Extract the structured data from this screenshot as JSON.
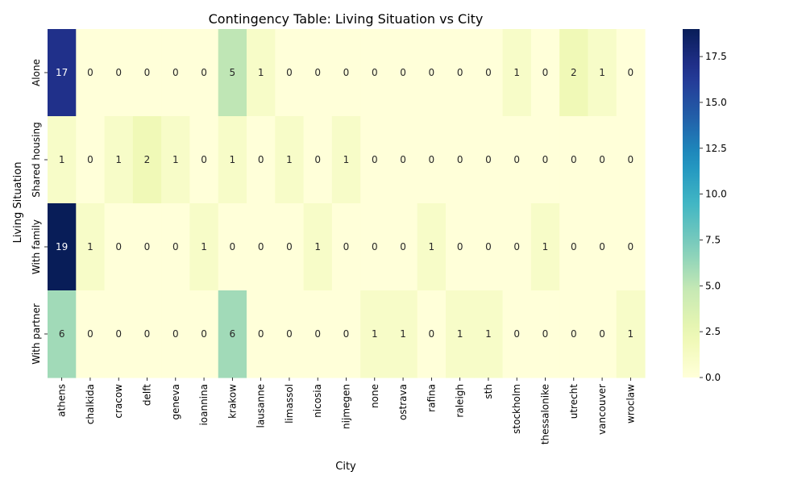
{
  "chart_data": {
    "type": "heatmap",
    "title": "Contingency Table: Living Situation vs City",
    "xlabel": "City",
    "ylabel": "Living Situation",
    "x": [
      "athens",
      "chalkida",
      "cracow",
      "delft",
      "geneva",
      "ioannina",
      "krakow",
      "lausanne",
      "limassol",
      "nicosia",
      "nijmegen",
      "none",
      "ostrava",
      "rafina",
      "raleigh",
      "sth",
      "stockholm",
      "thessalonike",
      "utrecht",
      "vancouver",
      "wroclaw"
    ],
    "y": [
      "Alone",
      "Shared housing",
      "With family",
      "With partner"
    ],
    "values": [
      [
        17,
        0,
        0,
        0,
        0,
        0,
        5,
        1,
        0,
        0,
        0,
        0,
        0,
        0,
        0,
        0,
        1,
        0,
        2,
        1,
        0
      ],
      [
        1,
        0,
        1,
        2,
        1,
        0,
        1,
        0,
        1,
        0,
        1,
        0,
        0,
        0,
        0,
        0,
        0,
        0,
        0,
        0,
        0
      ],
      [
        19,
        1,
        0,
        0,
        0,
        1,
        0,
        0,
        0,
        1,
        0,
        0,
        0,
        1,
        0,
        0,
        0,
        1,
        0,
        0,
        0
      ],
      [
        6,
        0,
        0,
        0,
        0,
        0,
        6,
        0,
        0,
        0,
        0,
        1,
        1,
        0,
        1,
        1,
        0,
        0,
        0,
        0,
        1
      ]
    ],
    "colormap": "YlGnBu",
    "color_range": [
      0,
      19
    ],
    "colorbar_ticks": [
      "0.0",
      "2.5",
      "5.0",
      "7.5",
      "10.0",
      "12.5",
      "15.0",
      "17.5"
    ],
    "colorbar_tick_values": [
      0,
      2.5,
      5,
      7.5,
      10,
      12.5,
      15,
      17.5
    ],
    "grid": false,
    "annotations": true
  }
}
